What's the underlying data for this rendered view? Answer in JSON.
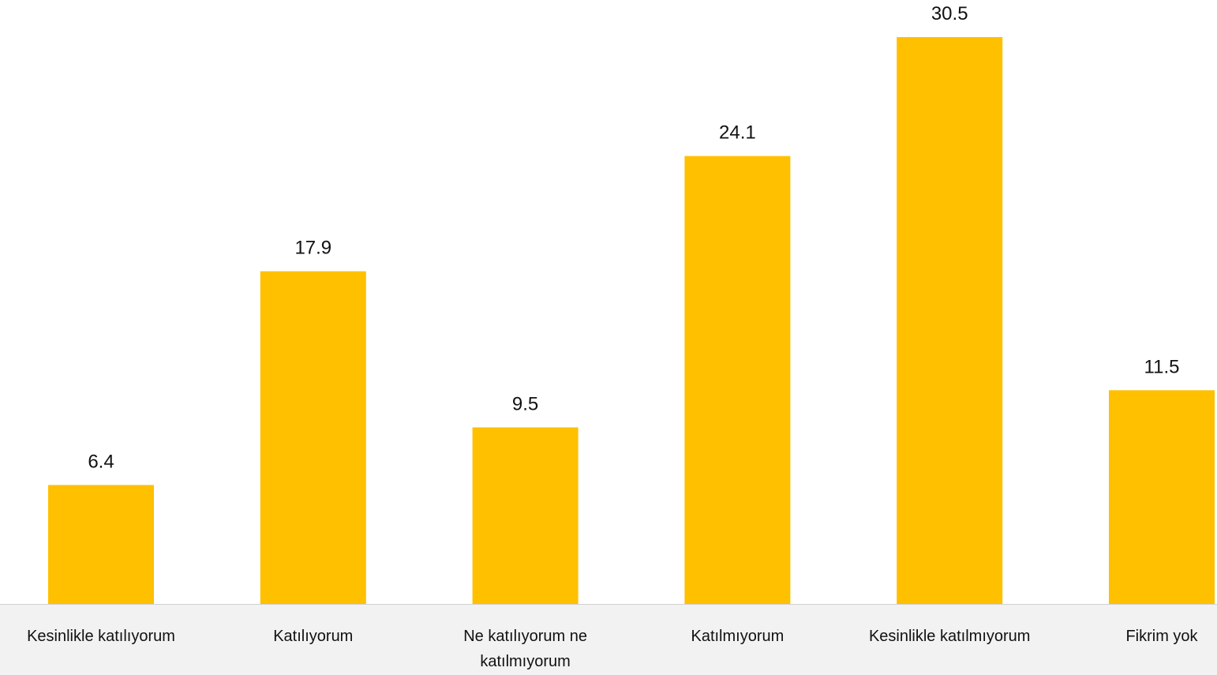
{
  "chart_data": {
    "type": "bar",
    "categories": [
      "Kesinlikle katılıyorum",
      "Katılıyorum",
      "Ne katılıyorum ne katılmıyorum",
      "Katılmıyorum",
      "Kesinlikle katılmıyorum",
      "Fikrim yok"
    ],
    "values": [
      6.4,
      17.9,
      9.5,
      24.1,
      30.5,
      11.5
    ],
    "color": "#ffc000"
  }
}
